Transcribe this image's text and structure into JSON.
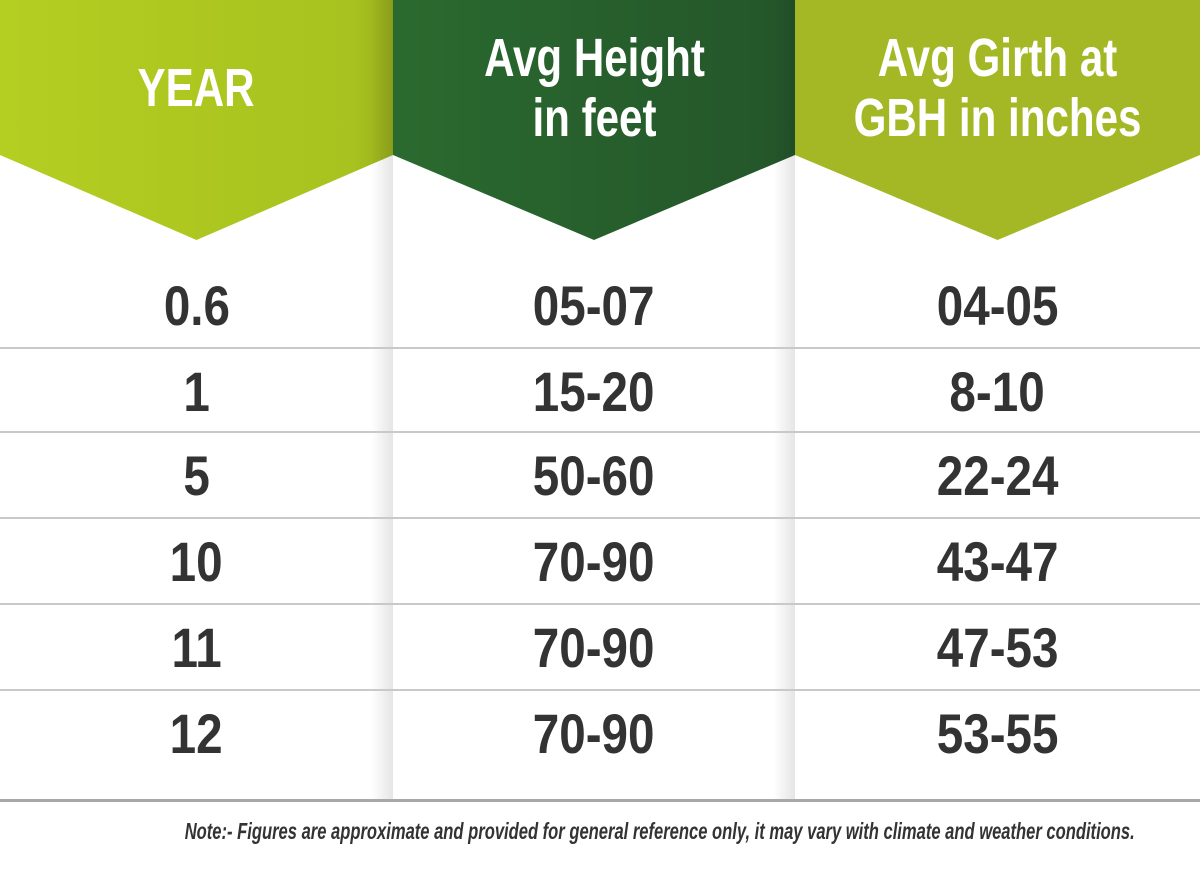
{
  "colors": {
    "year_header": "#b2cc22",
    "height_header": "#27622c",
    "girth_header": "#a3b824",
    "text": "#333333"
  },
  "chart_data": {
    "type": "table",
    "columns": [
      "YEAR",
      "Avg Height\nin feet",
      "Avg Girth at\nGBH in inches"
    ],
    "rows": [
      [
        "0.6",
        "05-07",
        "04-05"
      ],
      [
        "1",
        "15-20",
        "8-10"
      ],
      [
        "5",
        "50-60",
        "22-24"
      ],
      [
        "10",
        "70-90",
        "43-47"
      ],
      [
        "11",
        "70-90",
        "47-53"
      ],
      [
        "12",
        "70-90",
        "53-55"
      ]
    ]
  },
  "note": "Note:- Figures are approximate and provided for general reference only, it may vary with climate and weather conditions."
}
